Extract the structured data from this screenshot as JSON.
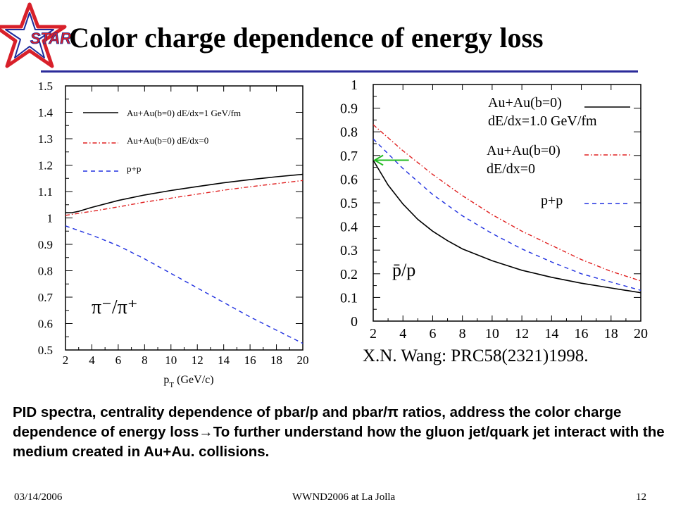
{
  "slide": {
    "title": "Color charge dependence of energy loss",
    "logo_text": "STAR",
    "citation": "X.N. Wang: PRC58(2321)1998.",
    "body_text": "PID spectra, centrality dependence of pbar/p and pbar/π ratios, address the color charge dependence of energy loss→To further understand how the gluon jet/quark jet interact with the medium created in Au+Au. collisions.",
    "footer": {
      "date": "03/14/2006",
      "venue": "WWND2006 at La Jolla",
      "page": "12"
    },
    "colors": {
      "accent_rule": "#2b2b9a",
      "logo_red": "#d8202a",
      "logo_blue": "#1c2c9c"
    }
  },
  "chart_data": [
    {
      "type": "line",
      "xlabel": "p_T (GeV/c)",
      "ylabel": "",
      "annotation": "π⁻/π⁺",
      "xlim": [
        2,
        20
      ],
      "ylim": [
        0.5,
        1.5
      ],
      "xticks": [
        2,
        4,
        6,
        8,
        10,
        12,
        14,
        16,
        18,
        20
      ],
      "yticks": [
        0.5,
        0.6,
        0.7,
        0.8,
        0.9,
        1,
        1.1,
        1.2,
        1.3,
        1.4,
        1.5
      ],
      "legend_position": "top",
      "series": [
        {
          "name": "Au+Au(b=0) dE/dx=1 GeV/fm",
          "color": "#000000",
          "dash": "solid",
          "x": [
            2,
            2.5,
            3,
            4,
            6,
            8,
            10,
            12,
            14,
            16,
            18,
            20
          ],
          "y": [
            1.02,
            1.02,
            1.025,
            1.04,
            1.066,
            1.087,
            1.104,
            1.119,
            1.133,
            1.145,
            1.156,
            1.165
          ]
        },
        {
          "name": "Au+Au(b=0) dE/dx=0",
          "color": "#e02020",
          "dash": "dashdot",
          "x": [
            2,
            4,
            6,
            8,
            10,
            12,
            14,
            16,
            18,
            20
          ],
          "y": [
            1.01,
            1.025,
            1.042,
            1.06,
            1.075,
            1.09,
            1.105,
            1.118,
            1.13,
            1.142
          ]
        },
        {
          "name": "p+p",
          "color": "#2030e0",
          "dash": "dashed",
          "x": [
            2,
            4,
            6,
            8,
            10,
            12,
            14,
            16,
            18,
            20
          ],
          "y": [
            0.97,
            0.935,
            0.895,
            0.845,
            0.79,
            0.735,
            0.68,
            0.625,
            0.575,
            0.525
          ]
        }
      ]
    },
    {
      "type": "line",
      "xlabel": "",
      "ylabel": "",
      "annotation": "p̄/p",
      "xlim": [
        2,
        20
      ],
      "ylim": [
        0,
        1
      ],
      "xticks": [
        2,
        4,
        6,
        8,
        10,
        12,
        14,
        16,
        18,
        20
      ],
      "yticks": [
        0,
        0.1,
        0.2,
        0.3,
        0.4,
        0.5,
        0.6,
        0.7,
        0.8,
        0.9,
        1
      ],
      "legend_position": "right",
      "arrow": {
        "x_from": 4.4,
        "x_to": 2.1,
        "y": 0.68,
        "color": "#22bb22"
      },
      "series": [
        {
          "name_lines": [
            "Au+Au(b=0)",
            "dE/dx=1.0 GeV/fm"
          ],
          "color": "#000000",
          "dash": "solid",
          "x": [
            2,
            3,
            4,
            5,
            6,
            7,
            8,
            10,
            12,
            14,
            16,
            18,
            20
          ],
          "y": [
            0.68,
            0.575,
            0.495,
            0.43,
            0.38,
            0.34,
            0.305,
            0.255,
            0.215,
            0.185,
            0.16,
            0.14,
            0.12
          ]
        },
        {
          "name_lines": [
            "Au+Au(b=0)",
            "dE/dx=0"
          ],
          "color": "#e02020",
          "dash": "dashdot",
          "x": [
            2,
            4,
            6,
            8,
            10,
            12,
            14,
            16,
            18,
            20
          ],
          "y": [
            0.83,
            0.72,
            0.62,
            0.53,
            0.45,
            0.38,
            0.32,
            0.26,
            0.21,
            0.17
          ]
        },
        {
          "name_lines": [
            "p+p"
          ],
          "color": "#2030e0",
          "dash": "dashed",
          "x": [
            2,
            4,
            6,
            8,
            10,
            12,
            14,
            16,
            18,
            20
          ],
          "y": [
            0.77,
            0.645,
            0.535,
            0.445,
            0.37,
            0.305,
            0.25,
            0.2,
            0.165,
            0.13
          ]
        }
      ]
    }
  ]
}
